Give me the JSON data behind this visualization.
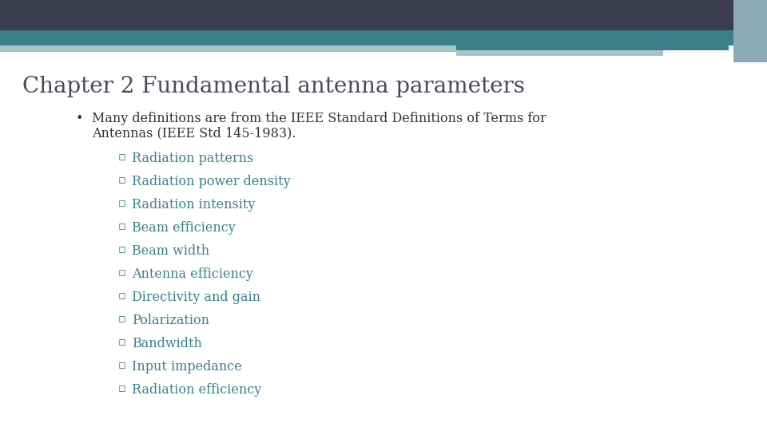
{
  "title": "Chapter 2 Fundamental antenna parameters",
  "title_color": "#4a4a5a",
  "title_fontsize": 20,
  "background_color": "#ffffff",
  "header_navy_color": "#3c3d4e",
  "header_teal_color": "#3a7f8a",
  "header_light1_color": "#a8c4c8",
  "header_light2_color": "#b8cfd3",
  "header_right_accent": "#8aaab5",
  "bullet_color": "#333333",
  "bullet_fontsize": 11.5,
  "sub_item_color": "#3a8090",
  "sub_item_fontsize": 11.5,
  "line1": "Many definitions are from the IEEE Standard Definitions of Terms for",
  "line2": "Antennas (IEEE Std 145-1983).",
  "sub_items": [
    "Radiation patterns",
    "Radiation power density",
    "Radiation intensity",
    "Beam efficiency",
    "Beam width",
    "Antenna efficiency",
    "Directivity and gain",
    "Polarization",
    "Bandwidth",
    "Input impedance",
    "Radiation efficiency"
  ]
}
